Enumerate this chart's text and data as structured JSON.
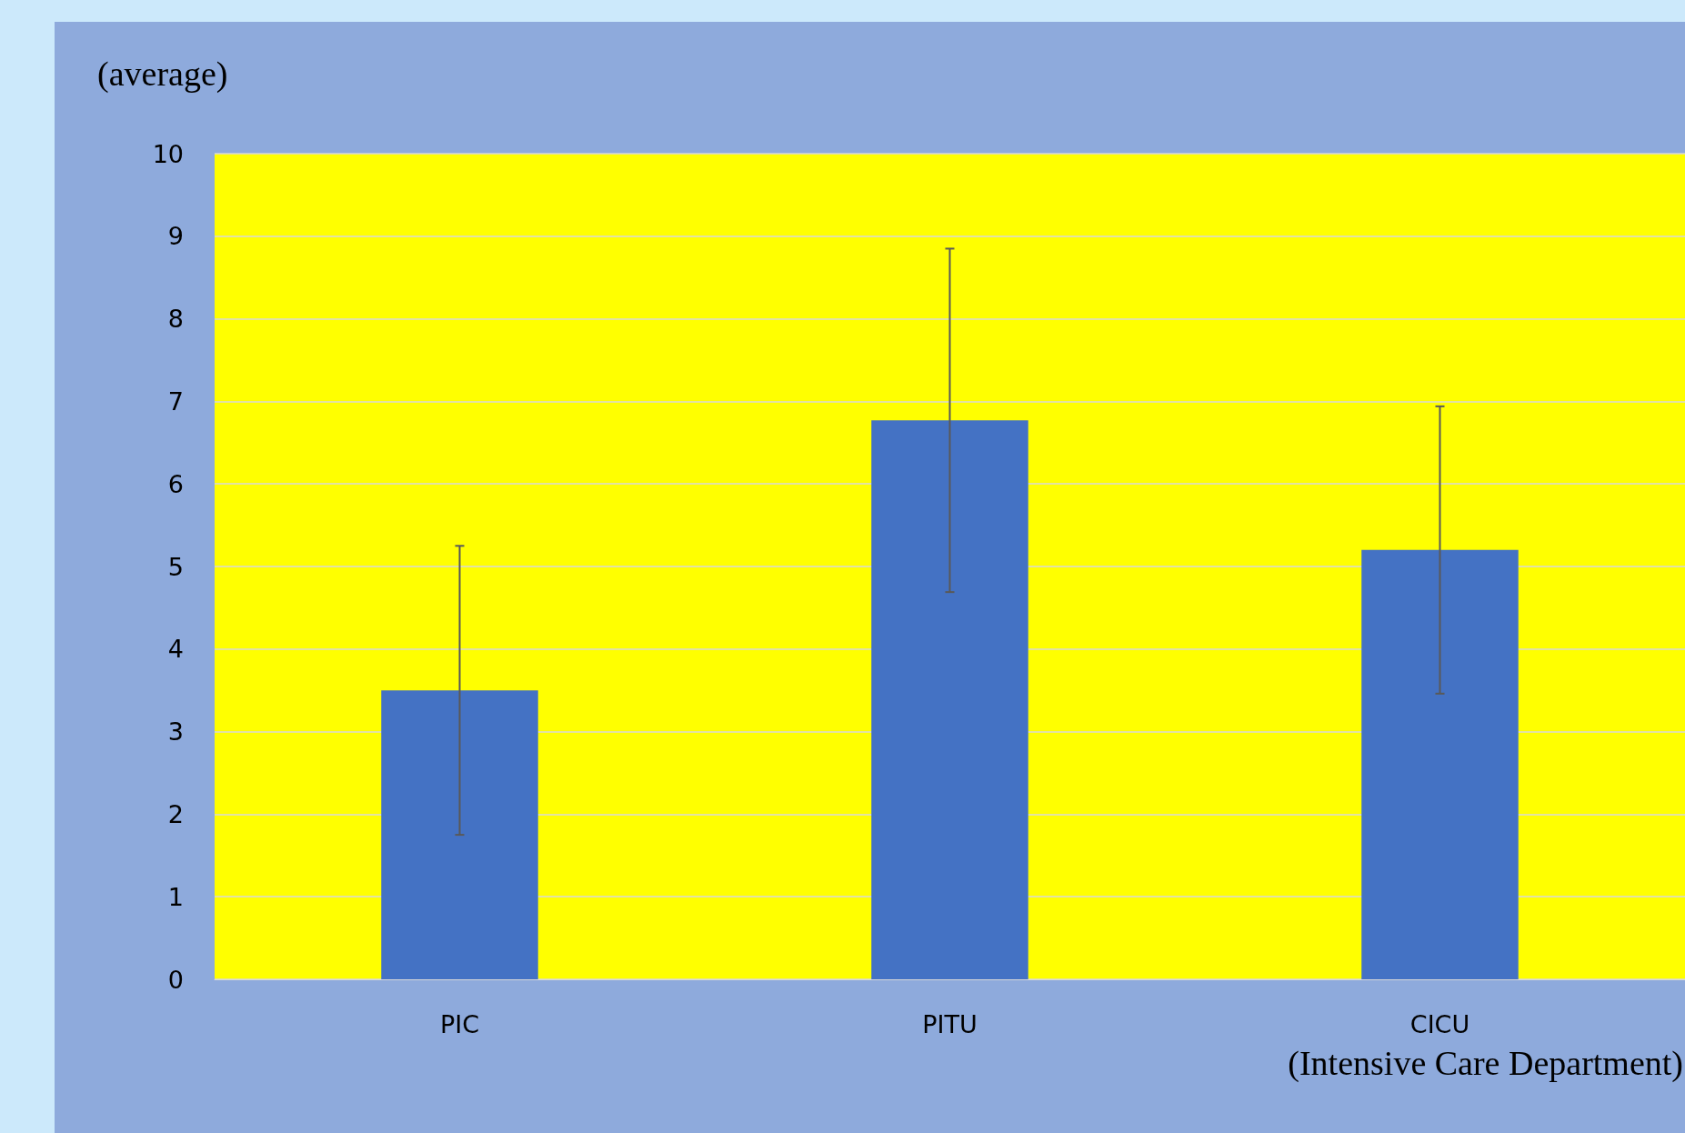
{
  "chart_data": {
    "type": "bar",
    "ylabel": "(average)",
    "xlabel": "(Intensive Care Department)",
    "categories": [
      "PIC",
      "PITU",
      "CICU"
    ],
    "values": [
      3.5,
      6.77,
      5.2
    ],
    "errors": [
      1.75,
      2.08,
      1.74
    ],
    "color": "#4472c4",
    "ylim": [
      0,
      10
    ],
    "yticks": [
      0,
      1,
      2,
      3,
      4,
      5,
      6,
      7,
      8,
      9,
      10
    ],
    "grid": "y"
  }
}
